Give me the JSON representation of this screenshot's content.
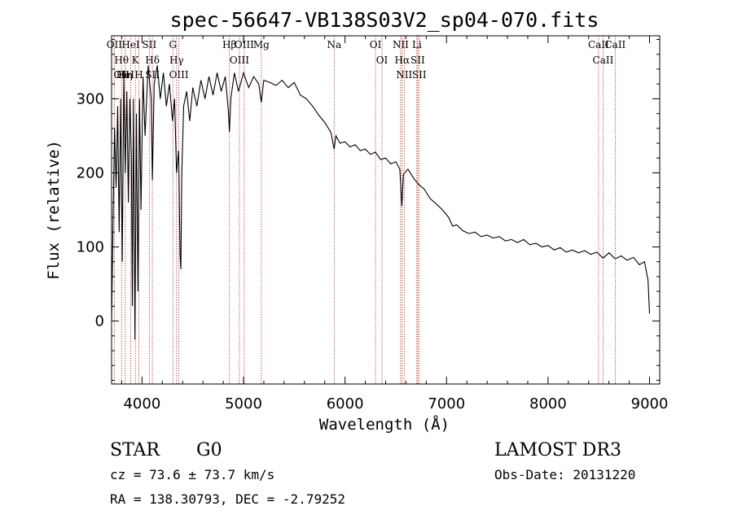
{
  "chart_data": {
    "type": "line",
    "title": "spec-56647-VB138S03V2_sp04-070.fits",
    "xlabel": "Wavelength (Å)",
    "ylabel": "Flux (relative)",
    "xlim": [
      3700,
      9100
    ],
    "ylim": [
      -85,
      385
    ],
    "xticks": [
      4000,
      5000,
      6000,
      7000,
      8000,
      9000
    ],
    "yticks": [
      0,
      100,
      200,
      300
    ],
    "series": [
      {
        "name": "spectrum",
        "points": [
          [
            3700,
            0
          ],
          [
            3715,
            140
          ],
          [
            3730,
            260
          ],
          [
            3745,
            180
          ],
          [
            3760,
            290
          ],
          [
            3775,
            120
          ],
          [
            3790,
            300
          ],
          [
            3805,
            80
          ],
          [
            3820,
            330
          ],
          [
            3835,
            200
          ],
          [
            3850,
            310
          ],
          [
            3865,
            160
          ],
          [
            3880,
            300
          ],
          [
            3895,
            220
          ],
          [
            3905,
            20
          ],
          [
            3915,
            300
          ],
          [
            3930,
            -25
          ],
          [
            3945,
            280
          ],
          [
            3960,
            40
          ],
          [
            3975,
            300
          ],
          [
            3990,
            150
          ],
          [
            4010,
            330
          ],
          [
            4030,
            250
          ],
          [
            4060,
            345
          ],
          [
            4090,
            300
          ],
          [
            4102,
            190
          ],
          [
            4120,
            320
          ],
          [
            4150,
            345
          ],
          [
            4180,
            300
          ],
          [
            4210,
            335
          ],
          [
            4240,
            290
          ],
          [
            4270,
            320
          ],
          [
            4300,
            270
          ],
          [
            4320,
            300
          ],
          [
            4340,
            200
          ],
          [
            4360,
            230
          ],
          [
            4375,
            90
          ],
          [
            4383,
            70
          ],
          [
            4392,
            200
          ],
          [
            4410,
            290
          ],
          [
            4440,
            310
          ],
          [
            4470,
            270
          ],
          [
            4500,
            315
          ],
          [
            4540,
            290
          ],
          [
            4580,
            325
          ],
          [
            4620,
            300
          ],
          [
            4660,
            330
          ],
          [
            4700,
            305
          ],
          [
            4740,
            335
          ],
          [
            4780,
            310
          ],
          [
            4820,
            330
          ],
          [
            4850,
            285
          ],
          [
            4861,
            255
          ],
          [
            4875,
            300
          ],
          [
            4910,
            335
          ],
          [
            4950,
            310
          ],
          [
            5000,
            335
          ],
          [
            5050,
            315
          ],
          [
            5100,
            330
          ],
          [
            5150,
            320
          ],
          [
            5175,
            295
          ],
          [
            5200,
            325
          ],
          [
            5260,
            322
          ],
          [
            5320,
            318
          ],
          [
            5380,
            325
          ],
          [
            5440,
            315
          ],
          [
            5500,
            322
          ],
          [
            5560,
            305
          ],
          [
            5620,
            300
          ],
          [
            5680,
            290
          ],
          [
            5740,
            278
          ],
          [
            5800,
            268
          ],
          [
            5860,
            255
          ],
          [
            5893,
            232
          ],
          [
            5910,
            250
          ],
          [
            5950,
            240
          ],
          [
            6000,
            242
          ],
          [
            6050,
            235
          ],
          [
            6100,
            238
          ],
          [
            6150,
            230
          ],
          [
            6200,
            232
          ],
          [
            6250,
            225
          ],
          [
            6300,
            228
          ],
          [
            6350,
            218
          ],
          [
            6400,
            220
          ],
          [
            6450,
            212
          ],
          [
            6500,
            215
          ],
          [
            6540,
            205
          ],
          [
            6560,
            155
          ],
          [
            6575,
            198
          ],
          [
            6620,
            205
          ],
          [
            6680,
            192
          ],
          [
            6720,
            185
          ],
          [
            6780,
            178
          ],
          [
            6840,
            165
          ],
          [
            6900,
            158
          ],
          [
            6960,
            150
          ],
          [
            7020,
            140
          ],
          [
            7060,
            128
          ],
          [
            7100,
            130
          ],
          [
            7160,
            122
          ],
          [
            7220,
            118
          ],
          [
            7280,
            120
          ],
          [
            7340,
            114
          ],
          [
            7400,
            116
          ],
          [
            7460,
            112
          ],
          [
            7520,
            114
          ],
          [
            7580,
            108
          ],
          [
            7640,
            110
          ],
          [
            7700,
            106
          ],
          [
            7760,
            110
          ],
          [
            7820,
            103
          ],
          [
            7880,
            105
          ],
          [
            7940,
            100
          ],
          [
            8000,
            102
          ],
          [
            8060,
            96
          ],
          [
            8120,
            99
          ],
          [
            8180,
            93
          ],
          [
            8240,
            96
          ],
          [
            8300,
            92
          ],
          [
            8360,
            95
          ],
          [
            8420,
            90
          ],
          [
            8480,
            93
          ],
          [
            8542,
            85
          ],
          [
            8600,
            92
          ],
          [
            8662,
            84
          ],
          [
            8720,
            88
          ],
          [
            8780,
            82
          ],
          [
            8840,
            86
          ],
          [
            8900,
            76
          ],
          [
            8950,
            80
          ],
          [
            8985,
            55
          ],
          [
            9000,
            10
          ]
        ]
      }
    ],
    "lines": [
      {
        "wl": 3727,
        "labels": [
          "OII"
        ]
      },
      {
        "wl": 3798,
        "labels": [
          "Hθ",
          "OII"
        ]
      },
      {
        "wl": 3835,
        "labels": [
          "HeI",
          "Hη"
        ]
      },
      {
        "wl": 3889,
        "labels": [
          "HeI"
        ]
      },
      {
        "wl": 3934,
        "labels": [
          "K"
        ]
      },
      {
        "wl": 3969,
        "labels": [
          "H"
        ]
      },
      {
        "wl": 4072,
        "labels": [
          "SII"
        ]
      },
      {
        "wl": 4102,
        "labels": [
          "Hδ",
          "SII"
        ]
      },
      {
        "wl": 4304,
        "labels": [
          "G"
        ]
      },
      {
        "wl": 4340,
        "labels": [
          "Hγ"
        ]
      },
      {
        "wl": 4363,
        "labels": [
          "OIII"
        ]
      },
      {
        "wl": 4861,
        "labels": [
          "Hβ"
        ]
      },
      {
        "wl": 4959,
        "labels": [
          "OIII"
        ]
      },
      {
        "wl": 5007,
        "labels": [
          "OIII"
        ]
      },
      {
        "wl": 5175,
        "labels": [
          "Mg"
        ]
      },
      {
        "wl": 5893,
        "labels": [
          "Na"
        ]
      },
      {
        "wl": 6300,
        "labels": [
          "OI"
        ]
      },
      {
        "wl": 6364,
        "labels": [
          "OI"
        ]
      },
      {
        "wl": 6548,
        "labels": [
          "NII"
        ]
      },
      {
        "wl": 6563,
        "labels": [
          "Hα"
        ]
      },
      {
        "wl": 6583,
        "labels": [
          "NII"
        ]
      },
      {
        "wl": 6708,
        "labels": [
          "Li"
        ]
      },
      {
        "wl": 6716,
        "labels": [
          "SII"
        ]
      },
      {
        "wl": 6731,
        "labels": [
          "SII"
        ]
      },
      {
        "wl": 8498,
        "labels": [
          "CaII"
        ]
      },
      {
        "wl": 8542,
        "labels": [
          "CaII"
        ]
      },
      {
        "wl": 8662,
        "labels": [
          "CaII"
        ]
      }
    ]
  },
  "info": {
    "star_label": "STAR",
    "spectral_type": "G0",
    "cz": "cz = 73.6 ± 73.7 km/s",
    "radec": "RA = 138.30793, DEC =  -2.79252",
    "survey": "LAMOST DR3",
    "obsdate": "Obs-Date: 20131220"
  },
  "colors": {
    "spectrum": "#000000",
    "line_marker": "#c0392b"
  }
}
